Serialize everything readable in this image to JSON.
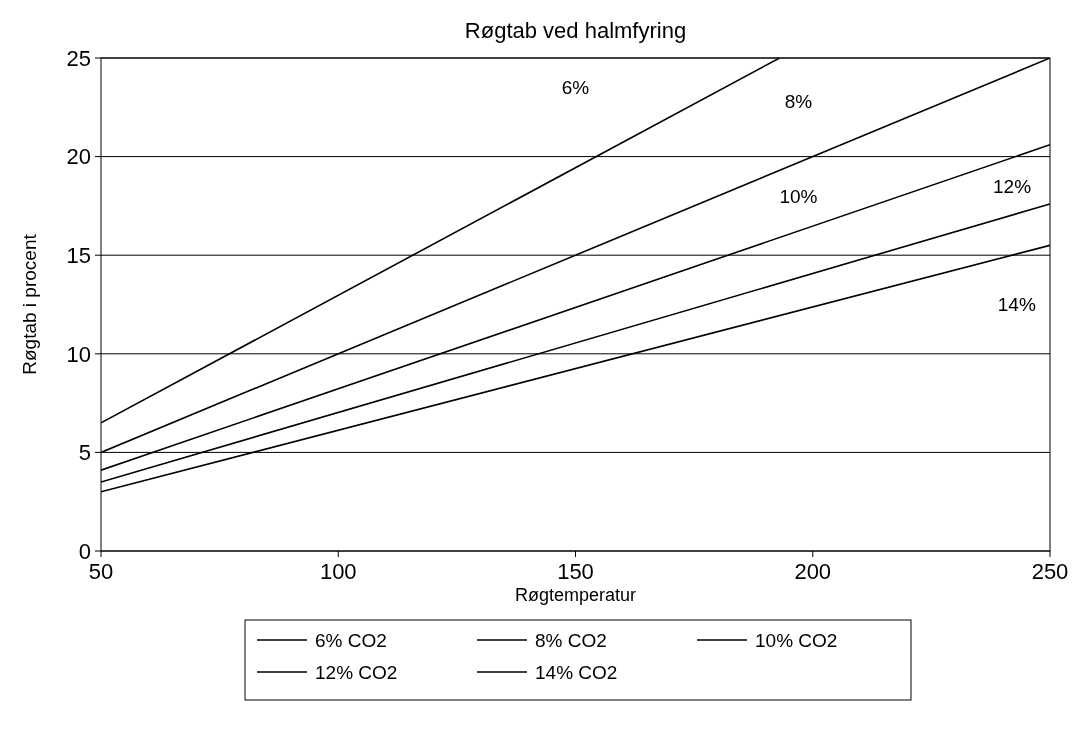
{
  "chart_data": {
    "type": "line",
    "title": "Røgtab ved halmfyring",
    "xlabel": "Røgtemperatur",
    "ylabel": "Røgtab i procent",
    "xlim": [
      50,
      250
    ],
    "xticks": [
      50,
      100,
      150,
      200,
      250
    ],
    "ylim": [
      0,
      25
    ],
    "yticks": [
      0,
      5,
      10,
      15,
      20,
      25
    ],
    "grid": "y",
    "legend": "bottom",
    "marker": "none",
    "line_style": "solid",
    "series": [
      {
        "name": "6% CO2",
        "color": "#000000",
        "x": [
          50,
          193
        ],
        "values": [
          6.5,
          25
        ]
      },
      {
        "name": "8% CO2",
        "color": "#000000",
        "x": [
          50,
          250
        ],
        "values": [
          5,
          25
        ]
      },
      {
        "name": "10% CO2",
        "color": "#000000",
        "x": [
          50,
          250
        ],
        "values": [
          4.1,
          20.6
        ]
      },
      {
        "name": "12% CO2",
        "color": "#000000",
        "x": [
          50,
          250
        ],
        "values": [
          3.5,
          17.6
        ]
      },
      {
        "name": "14% CO2",
        "color": "#000000",
        "x": [
          50,
          250
        ],
        "values": [
          3,
          15.5
        ]
      }
    ],
    "annotations": [
      "6%",
      "8%",
      "10%",
      "12%",
      "14%"
    ]
  }
}
